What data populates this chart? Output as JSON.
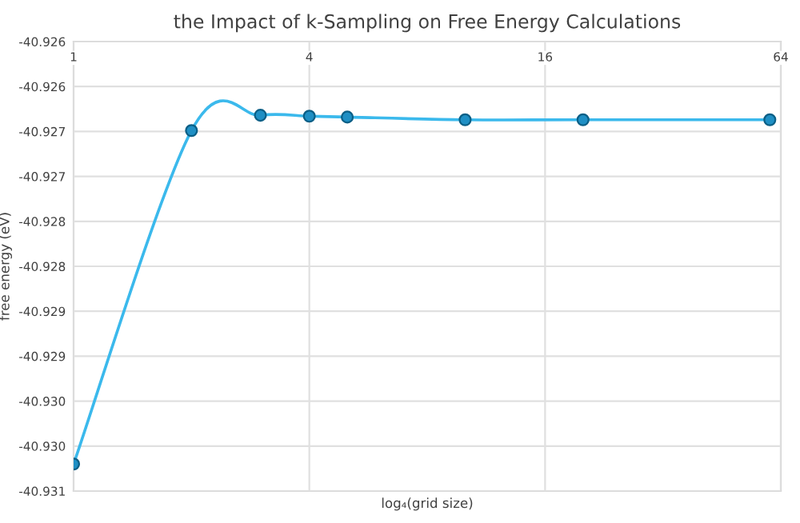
{
  "chart_data": {
    "type": "line",
    "title": "the Impact of k-Sampling on Free Energy Calculations",
    "xlabel": "log₄(grid size)",
    "ylabel": "free energy (eV)",
    "x": [
      1,
      2,
      3,
      4,
      5,
      10,
      20,
      60
    ],
    "series": [
      {
        "color": "#3bb9ec",
        "values": [
          -40.9307,
          -40.92699,
          -40.92682,
          -40.92683,
          -40.92684,
          -40.92687,
          -40.92687,
          -40.92687
        ]
      }
    ],
    "log": "x",
    "xlim": [
      1,
      64
    ],
    "xticks": [
      1,
      4,
      16,
      64
    ],
    "ylim": [
      -40.931,
      -40.926
    ],
    "yticks": [
      {
        "value": -40.931,
        "label": "-40.931"
      },
      {
        "value": -40.9305,
        "label": "-40.930"
      },
      {
        "value": -40.93,
        "label": "-40.930"
      },
      {
        "value": -40.9295,
        "label": "-40.929"
      },
      {
        "value": -40.929,
        "label": "-40.929"
      },
      {
        "value": -40.9285,
        "label": "-40.928"
      },
      {
        "value": -40.928,
        "label": "-40.928"
      },
      {
        "value": -40.9275,
        "label": "-40.927"
      },
      {
        "value": -40.927,
        "label": "-40.927"
      },
      {
        "value": -40.9265,
        "label": "-40.926"
      },
      {
        "value": -40.926,
        "label": "-40.926"
      }
    ],
    "grid": true,
    "marker": "circle",
    "line_style": "solid"
  }
}
